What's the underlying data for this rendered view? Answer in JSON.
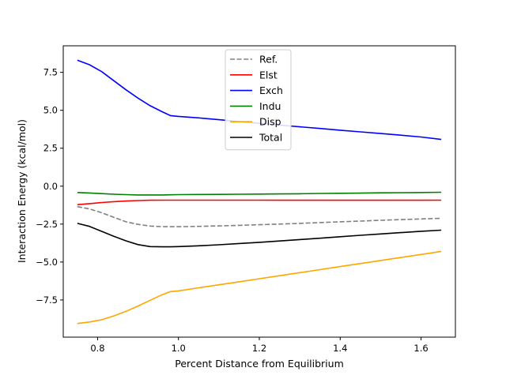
{
  "chart_data": {
    "type": "line",
    "title": "",
    "xlabel": "Percent Distance from Equilibrium",
    "ylabel": "Interaction Energy (kcal/mol)",
    "xlim": [
      0.715,
      1.685
    ],
    "ylim": [
      -9.95,
      9.25
    ],
    "xticks": [
      0.8,
      1.0,
      1.2,
      1.4,
      1.6
    ],
    "xtick_labels": [
      "0.8",
      "1.0",
      "1.2",
      "1.4",
      "1.6"
    ],
    "yticks": [
      -7.5,
      -5.0,
      -2.5,
      0.0,
      2.5,
      5.0,
      7.5
    ],
    "ytick_labels": [
      "−7.5",
      "−5.0",
      "−2.5",
      "0.0",
      "2.5",
      "5.0",
      "7.5"
    ],
    "grid": false,
    "legend_position": "upper-center",
    "x": [
      0.75,
      0.78,
      0.81,
      0.84,
      0.87,
      0.9,
      0.93,
      0.96,
      0.98,
      1.0,
      1.05,
      1.1,
      1.15,
      1.2,
      1.25,
      1.3,
      1.35,
      1.4,
      1.45,
      1.5,
      1.55,
      1.6,
      1.65
    ],
    "series": [
      {
        "name": "Ref.",
        "color": "#808080",
        "dashed": true,
        "values": [
          -1.35,
          -1.5,
          -1.75,
          -2.05,
          -2.35,
          -2.52,
          -2.63,
          -2.67,
          -2.67,
          -2.67,
          -2.65,
          -2.62,
          -2.58,
          -2.54,
          -2.5,
          -2.45,
          -2.4,
          -2.35,
          -2.3,
          -2.25,
          -2.2,
          -2.16,
          -2.12
        ]
      },
      {
        "name": "Elst",
        "color": "#ff0000",
        "dashed": false,
        "values": [
          -1.22,
          -1.15,
          -1.08,
          -1.02,
          -0.98,
          -0.95,
          -0.93,
          -0.92,
          -0.92,
          -0.92,
          -0.92,
          -0.92,
          -0.92,
          -0.92,
          -0.93,
          -0.93,
          -0.93,
          -0.93,
          -0.93,
          -0.93,
          -0.93,
          -0.93,
          -0.92
        ]
      },
      {
        "name": "Exch",
        "color": "#0000ff",
        "dashed": false,
        "values": [
          8.3,
          8.0,
          7.55,
          6.95,
          6.35,
          5.8,
          5.3,
          4.9,
          4.65,
          4.6,
          4.5,
          4.38,
          4.26,
          4.14,
          4.02,
          3.91,
          3.8,
          3.69,
          3.58,
          3.47,
          3.36,
          3.24,
          3.08
        ]
      },
      {
        "name": "Indu",
        "color": "#008000",
        "dashed": false,
        "values": [
          -0.42,
          -0.45,
          -0.49,
          -0.53,
          -0.56,
          -0.58,
          -0.58,
          -0.58,
          -0.57,
          -0.56,
          -0.55,
          -0.54,
          -0.53,
          -0.52,
          -0.51,
          -0.5,
          -0.48,
          -0.47,
          -0.46,
          -0.44,
          -0.43,
          -0.42,
          -0.4
        ]
      },
      {
        "name": "Disp",
        "color": "#ffa500",
        "dashed": false,
        "values": [
          -9.05,
          -8.95,
          -8.8,
          -8.55,
          -8.25,
          -7.9,
          -7.52,
          -7.15,
          -6.95,
          -6.9,
          -6.7,
          -6.5,
          -6.3,
          -6.1,
          -5.9,
          -5.7,
          -5.5,
          -5.3,
          -5.1,
          -4.9,
          -4.7,
          -4.5,
          -4.3
        ]
      },
      {
        "name": "Total",
        "color": "#000000",
        "dashed": false,
        "values": [
          -2.45,
          -2.65,
          -2.98,
          -3.3,
          -3.6,
          -3.85,
          -3.98,
          -4.0,
          -4.0,
          -3.98,
          -3.93,
          -3.86,
          -3.78,
          -3.7,
          -3.61,
          -3.52,
          -3.43,
          -3.33,
          -3.24,
          -3.15,
          -3.06,
          -2.97,
          -2.9
        ]
      }
    ]
  }
}
